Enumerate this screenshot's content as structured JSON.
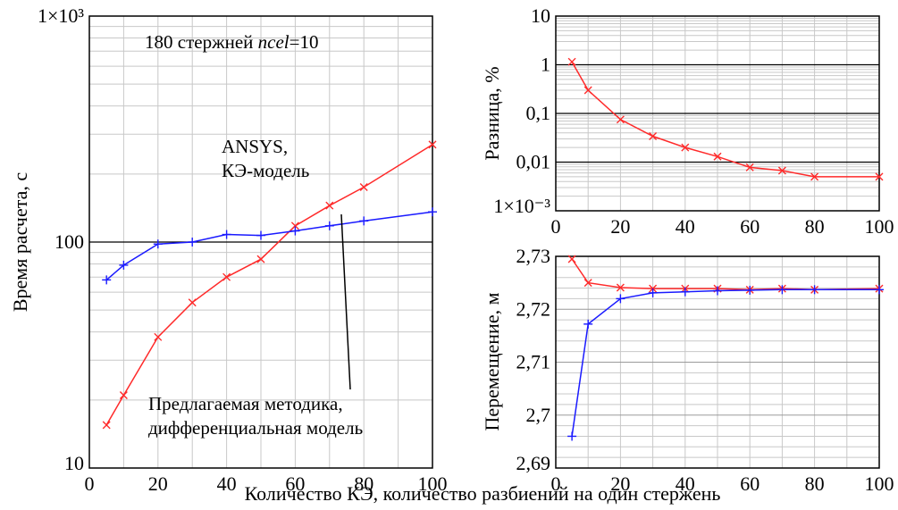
{
  "xlabel_common": "Количество КЭ, количество разбиений на один стержень",
  "colors": {
    "ansys": "#ff2a2a",
    "proposed": "#1a1aff",
    "grid": "#c8c8c8",
    "major_grid": "#000000"
  },
  "chart_data": [
    {
      "type": "line",
      "id": "time",
      "yscale": "log",
      "xlim": [
        0,
        100
      ],
      "ylim": [
        10,
        1000
      ],
      "xticks": [
        "0",
        "20",
        "40",
        "60",
        "80",
        "100"
      ],
      "yticks": [
        "10",
        "100",
        "1×10³"
      ],
      "ylabel": "Время расчета, с",
      "xlabel": "Количество КЭ, количество разбиений на один стержень",
      "annotations": {
        "header_pre": "180 стержней ",
        "header_italic": "ncel",
        "header_post": "=10",
        "ansys_line1": "ANSYS,",
        "ansys_line2": "КЭ-модель",
        "proposed_line1": "Предлагаемая методика,",
        "proposed_line2": "дифференциальная модель"
      },
      "series": [
        {
          "color": "#ff2a2a",
          "marker": "x",
          "x": [
            5,
            10,
            20,
            30,
            40,
            50,
            60,
            70,
            80,
            100
          ],
          "y": [
            15.5,
            21,
            38,
            54,
            70,
            84,
            118,
            145,
            175,
            270
          ]
        },
        {
          "color": "#1a1aff",
          "marker": "+",
          "x": [
            5,
            10,
            20,
            30,
            40,
            50,
            60,
            70,
            80,
            100
          ],
          "y": [
            68,
            79,
            98,
            100,
            108,
            107,
            112,
            118,
            124,
            136
          ]
        }
      ]
    },
    {
      "type": "line",
      "id": "diff",
      "yscale": "log",
      "xlim": [
        0,
        100
      ],
      "ylim": [
        0.001,
        10
      ],
      "xticks": [
        "0",
        "20",
        "40",
        "60",
        "80",
        "100"
      ],
      "yticks": [
        "1×10⁻³",
        "0,01",
        "0,1",
        "1",
        "10"
      ],
      "ylabel": "Разница, %",
      "series": [
        {
          "color": "#ff2a2a",
          "marker": "x",
          "x": [
            5,
            10,
            20,
            30,
            40,
            50,
            60,
            70,
            80,
            100
          ],
          "y": [
            1.15,
            0.3,
            0.075,
            0.034,
            0.02,
            0.013,
            0.0078,
            0.0067,
            0.005,
            0.005
          ]
        }
      ]
    },
    {
      "type": "line",
      "id": "disp",
      "yscale": "linear",
      "xlim": [
        0,
        100
      ],
      "ylim": [
        2.69,
        2.73
      ],
      "xticks": [
        "0",
        "20",
        "40",
        "60",
        "80",
        "100"
      ],
      "yticks": [
        "2,69",
        "2,7",
        "2,71",
        "2,72",
        "2,73"
      ],
      "ylabel": "Перемещение, м",
      "series": [
        {
          "color": "#ff2a2a",
          "marker": "x",
          "x": [
            5,
            10,
            20,
            30,
            40,
            50,
            60,
            70,
            80,
            100
          ],
          "y": [
            2.7295,
            2.725,
            2.7241,
            2.7239,
            2.7239,
            2.7239,
            2.7237,
            2.7239,
            2.7237,
            2.7239
          ]
        },
        {
          "color": "#1a1aff",
          "marker": "+",
          "x": [
            5,
            10,
            20,
            30,
            40,
            50,
            60,
            70,
            80,
            100
          ],
          "y": [
            2.696,
            2.7172,
            2.722,
            2.7231,
            2.7233,
            2.7235,
            2.7236,
            2.7237,
            2.7237,
            2.7237
          ]
        }
      ]
    }
  ]
}
